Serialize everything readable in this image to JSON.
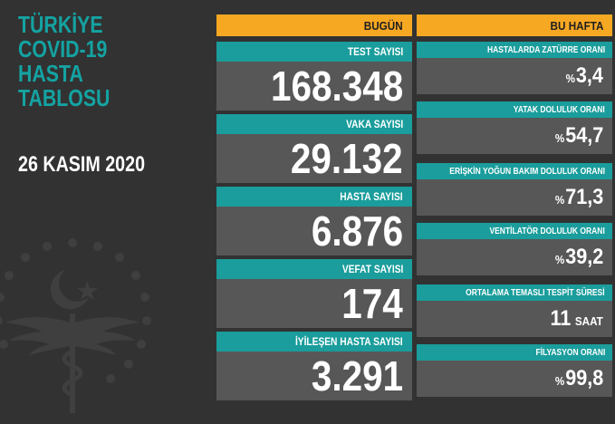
{
  "title_lines": [
    "TÜRKİYE",
    "COVID-19",
    "HASTA",
    "TABLOSU"
  ],
  "date": "26 KASIM 2020",
  "headers": {
    "today": "BUGÜN",
    "week": "BU HAFTA"
  },
  "today": [
    {
      "label": "TEST SAYISI",
      "value": "168.348"
    },
    {
      "label": "VAKA SAYISI",
      "value": "29.132"
    },
    {
      "label": "HASTA SAYISI",
      "value": "6.876"
    },
    {
      "label": "VEFAT SAYISI",
      "value": "174"
    },
    {
      "label": "İYİLEŞEN HASTA SAYISI",
      "value": "3.291"
    }
  ],
  "week": [
    {
      "label": "HASTALARDA ZATÜRRE ORANI",
      "prefix": "%",
      "value": "3,4",
      "unit": ""
    },
    {
      "label": "YATAK DOLULUK ORANI",
      "prefix": "%",
      "value": "54,7",
      "unit": ""
    },
    {
      "label": "ERİŞKİN YOĞUN BAKIM DOLULUK ORANI",
      "prefix": "%",
      "value": "71,3",
      "unit": ""
    },
    {
      "label": "VENTİLATÖR DOLULUK ORANI",
      "prefix": "%",
      "value": "39,2",
      "unit": ""
    },
    {
      "label": "ORTALAMA TEMASLI TESPİT SÜRESİ",
      "prefix": "",
      "value": "11",
      "unit": "SAAT"
    },
    {
      "label": "FİLYASYON ORANI",
      "prefix": "%",
      "value": "99,8",
      "unit": ""
    }
  ],
  "colors": {
    "background": "#323232",
    "teal": "#1a9d9c",
    "title_teal": "#14a3a2",
    "orange": "#f7a823",
    "value_bg": "#575757"
  }
}
